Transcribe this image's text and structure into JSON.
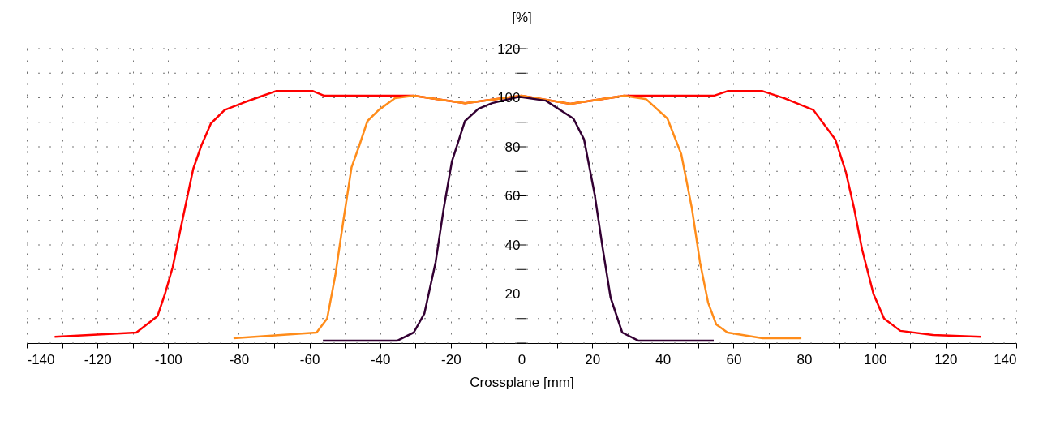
{
  "chart_data": {
    "type": "line",
    "xlabel": "Crossplane [mm]",
    "ylabel": "[%]",
    "xlim": [
      -140,
      140
    ],
    "ylim": [
      0,
      120
    ],
    "xticks": [
      -140,
      {
        "value": -130,
        "label": null
      },
      -120,
      {
        "value": -110,
        "label": null
      },
      -100,
      {
        "value": -90,
        "label": null
      },
      -80,
      {
        "value": -70,
        "label": null
      },
      -60,
      {
        "value": -50,
        "label": null
      },
      -40,
      {
        "value": -30,
        "label": null
      },
      -20,
      {
        "value": -10,
        "label": null
      },
      0,
      {
        "value": 10,
        "label": null
      },
      20,
      {
        "value": 30,
        "label": null
      },
      40,
      {
        "value": 50,
        "label": null
      },
      60,
      {
        "value": 70,
        "label": null
      },
      80,
      {
        "value": 90,
        "label": null
      },
      100,
      {
        "value": 110,
        "label": null
      },
      120,
      {
        "value": 130,
        "label": null
      },
      140
    ],
    "yticks": [
      {
        "value": 0,
        "label": null
      },
      {
        "value": 10,
        "label": null
      },
      20,
      {
        "value": 30,
        "label": null
      },
      40,
      {
        "value": 50,
        "label": null
      },
      60,
      {
        "value": 70,
        "label": null
      },
      80,
      {
        "value": 90,
        "label": null
      },
      100,
      {
        "value": 110,
        "label": null
      },
      120
    ],
    "grid": true,
    "line_style": "solid",
    "marker": "none",
    "series": [
      {
        "color": "#ff0000",
        "x": [
          -132.1,
          -109,
          -103,
          -100.9,
          -98.7,
          -96.7,
          -94.8,
          -92.9,
          -90.6,
          -87.9,
          -84,
          -78.7,
          -74,
          -69.5,
          -59,
          -55.8,
          -30.5,
          -16,
          0,
          13.8,
          29,
          54.4,
          58.3,
          68.2,
          74.4,
          82.6,
          88.8,
          91.8,
          94.1,
          96.4,
          99.6,
          102.6,
          107.2,
          116.4,
          130.1
        ],
        "values": [
          2.6,
          4.3,
          11,
          20,
          31,
          45,
          58,
          71,
          80.5,
          89.5,
          95,
          98,
          100.4,
          102.7,
          102.7,
          100.8,
          100.8,
          97.8,
          100.8,
          97.5,
          100.8,
          100.8,
          102.7,
          102.7,
          99.8,
          95,
          83,
          69.6,
          55,
          38,
          20,
          10,
          5,
          3.3,
          2.6
        ]
      },
      {
        "color": "#ff8c1a",
        "x": [
          -81.5,
          -58,
          -55,
          -52.7,
          -50.4,
          -48.1,
          -45.9,
          -43.6,
          -40.4,
          -35.8,
          -30.5,
          -16,
          0,
          13.8,
          29,
          35.3,
          41.3,
          45.2,
          48.2,
          50.5,
          52.8,
          55.1,
          58.3,
          68.2,
          79.2
        ],
        "values": [
          2,
          4.3,
          10,
          27.5,
          50,
          71.6,
          80.5,
          90.5,
          95,
          99.8,
          100.8,
          97.8,
          100.8,
          97.5,
          100.8,
          99.4,
          91.5,
          77,
          55,
          33,
          16.5,
          7.6,
          4.3,
          2,
          2
        ]
      },
      {
        "color": "#330033",
        "x": [
          -56.2,
          -35.1,
          -30.5,
          -27.5,
          -24.3,
          -22,
          -19.7,
          -16,
          -12.2,
          -8.3,
          -0.7,
          6.9,
          14.7,
          17.7,
          20.7,
          23,
          25.2,
          28.5,
          33,
          54.4
        ],
        "values": [
          1,
          1,
          4.3,
          12,
          33,
          55,
          74,
          90.5,
          95.5,
          97.8,
          100.4,
          98.8,
          91.5,
          83,
          60.6,
          38.4,
          18.6,
          4.3,
          1,
          1
        ]
      }
    ]
  }
}
